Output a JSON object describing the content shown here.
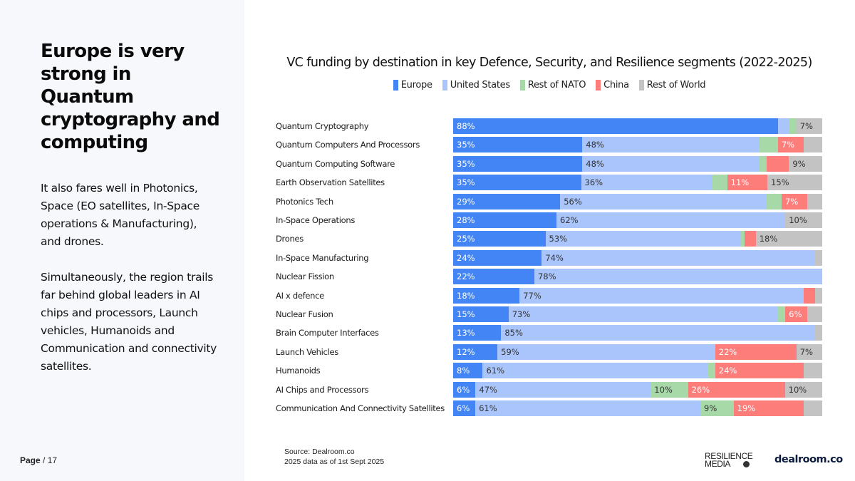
{
  "left_panel": {
    "headline": "Europe is very strong in Quantum cryptography and computing",
    "paragraphs": [
      "It also fares well in Photonics, Space (EO satellites, In-Space operations & Manufacturing), and drones.",
      "Simultaneously, the region trails far behind global leaders in AI chips and processors, Launch vehicles, Humanoids and Communication and connectivity satellites."
    ],
    "page_label": "Page",
    "page_total": "/ 17"
  },
  "footer": {
    "source_line": "Source:  Dealroom.co",
    "date_line": "2025 data as of 1st Sept 2025",
    "logo_resilience_line1": "RESILIENCE",
    "logo_resilience_line2": "MEDIA",
    "logo_dealroom": "dealroom.co"
  },
  "chart_data": {
    "type": "bar",
    "orientation": "horizontal",
    "stacked": "100%",
    "title": "VC funding by destination in key Defence, Security, and Resilience segments (2022-2025)",
    "xlabel": "",
    "ylabel": "",
    "xlim": [
      0,
      100
    ],
    "grid": false,
    "legend_position": "top-center",
    "categories": [
      "Quantum Cryptography",
      "Quantum Computers And Processors",
      "Quantum Computing Software",
      "Earth Observation Satellites",
      "Photonics Tech",
      "In-Space Operations",
      "Drones",
      "In-Space Manufacturing",
      "Nuclear Fission",
      "AI x defence",
      "Nuclear Fusion",
      "Brain Computer Interfaces",
      "Launch Vehicles",
      "Humanoids",
      "AI Chips and Processors",
      "Communication And Connectivity Satellites"
    ],
    "series": [
      {
        "name": "Europe",
        "color": "#4385f5",
        "label_color": "#ffffff",
        "values": [
          88,
          35,
          35,
          35,
          29,
          28,
          25,
          24,
          22,
          18,
          15,
          13,
          12,
          8,
          6,
          6
        ],
        "labels": [
          "88%",
          "35%",
          "35%",
          "35%",
          "29%",
          "28%",
          "25%",
          "24%",
          "22%",
          "18%",
          "15%",
          "13%",
          "12%",
          "8%",
          "6%",
          "6%"
        ]
      },
      {
        "name": "United States",
        "color": "#a9c5fb",
        "label_color": "#333333",
        "values": [
          3,
          48,
          48,
          36,
          56,
          62,
          53,
          74,
          78,
          77,
          73,
          85,
          59,
          61,
          47,
          61
        ],
        "labels": [
          "",
          "48%",
          "48%",
          "36%",
          "56%",
          "62%",
          "53%",
          "74%",
          "78%",
          "77%",
          "73%",
          "85%",
          "59%",
          "61%",
          "47%",
          "61%"
        ]
      },
      {
        "name": "Rest of NATO",
        "color": "#a7d9a8",
        "label_color": "#333333",
        "values": [
          2,
          5,
          2,
          4,
          4,
          0,
          1,
          0,
          0,
          0,
          2,
          0,
          0,
          2,
          10,
          9
        ],
        "labels": [
          "",
          "",
          "",
          "",
          "",
          "",
          "",
          "",
          "",
          "",
          "",
          "",
          "",
          "",
          "10%",
          "9%"
        ]
      },
      {
        "name": "China",
        "color": "#fd7d7b",
        "label_color": "#ffffff",
        "values": [
          0,
          7,
          6,
          11,
          7,
          0,
          3,
          0,
          0,
          3,
          6,
          0,
          22,
          24,
          26,
          19
        ],
        "labels": [
          "",
          "7%",
          "",
          "11%",
          "7%",
          "",
          "",
          "",
          "",
          "",
          "6%",
          "",
          "22%",
          "24%",
          "26%",
          "19%"
        ]
      },
      {
        "name": "Rest of World",
        "color": "#c3c3c3",
        "label_color": "#333333",
        "values": [
          7,
          5,
          9,
          15,
          4,
          10,
          18,
          2,
          0,
          2,
          4,
          2,
          7,
          5,
          10,
          5
        ],
        "labels": [
          "7%",
          "",
          "9%",
          "15%",
          "",
          "10%",
          "18%",
          "",
          "",
          "",
          "",
          "",
          "7%",
          "",
          "10%",
          ""
        ]
      }
    ]
  }
}
